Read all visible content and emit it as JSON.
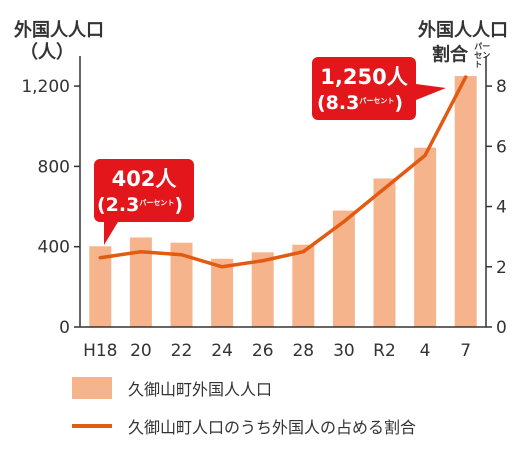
{
  "chart_data": {
    "type": "bar+line",
    "categories": [
      "H18",
      "20",
      "22",
      "24",
      "26",
      "28",
      "30",
      "R2",
      "4",
      "7"
    ],
    "series": [
      {
        "name": "久御山町外国人人口",
        "type": "bar",
        "axis": "left",
        "color": "#f6b48d",
        "values": [
          402,
          446,
          420,
          340,
          372,
          410,
          580,
          740,
          893,
          1250
        ]
      },
      {
        "name": "久御山町人口のうち外国人の占める割合",
        "type": "line",
        "axis": "right",
        "color": "#e35a12",
        "values": [
          2.3,
          2.5,
          2.4,
          2.0,
          2.2,
          2.5,
          3.5,
          4.6,
          5.7,
          8.3
        ]
      }
    ],
    "y_left": {
      "title_line1": "外国人人口",
      "title_line2": "（人）",
      "ticks": [
        "0",
        "400",
        "800",
        "1,200"
      ],
      "tick_values": [
        0,
        400,
        800,
        1200
      ],
      "range": [
        0,
        1320
      ]
    },
    "y_right": {
      "title_line1": "外国人人口",
      "title_line2": "割合",
      "title_unit": "パーセント",
      "ticks": [
        "0",
        "2",
        "4",
        "6",
        "8"
      ],
      "tick_values": [
        0,
        2,
        4,
        6,
        8
      ],
      "range": [
        0,
        8.8
      ]
    },
    "grid": false,
    "legend_position": "bottom",
    "annotations": [
      {
        "category_index": 0,
        "count_text": "402人",
        "pct_text": "(2.3",
        "unit": "パーセント",
        "close": ")"
      },
      {
        "category_index": 9,
        "count_text": "1,250人",
        "pct_text": "(8.3",
        "unit": "パーセント",
        "close": ")"
      }
    ]
  },
  "legend": {
    "bar_label": "久御山町外国人人口",
    "line_label": "久御山町人口のうち外国人の占める割合"
  },
  "colors": {
    "bar": "#f6b48d",
    "line": "#e35a12",
    "callout": "#e3161b",
    "axis": "#333333"
  }
}
